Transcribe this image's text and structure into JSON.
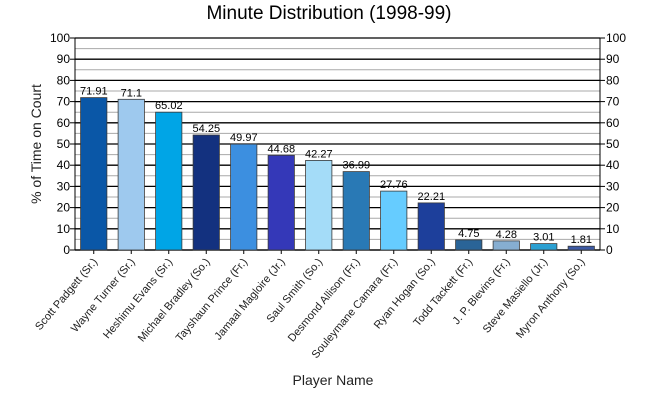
{
  "chart_data": {
    "type": "bar",
    "title": "Minute Distribution (1998-99)",
    "xlabel": "Player Name",
    "ylabel": "% of Time on Court",
    "ylim": [
      0,
      100
    ],
    "y_ticks": [
      0,
      10,
      20,
      30,
      40,
      50,
      60,
      70,
      80,
      90,
      100
    ],
    "grid": true,
    "legend": "none",
    "categories": [
      "Scott Padgett (Sr.)",
      "Wayne Turner (Sr.)",
      "Heshimu Evans (Sr.)",
      "Michael Bradley (So.)",
      "Tayshaun Prince (Fr.)",
      "Jamaal Magloire (Jr.)",
      "Saul Smith (So.)",
      "Desmond Allison (Fr.)",
      "Souleymane Camara (Fr.)",
      "Ryan Hogan (So.)",
      "Todd Tackett (Fr.)",
      "J. P. Blevins (Fr.)",
      "Steve Masiello (Jr.)",
      "Myron Anthony (So.)"
    ],
    "values": [
      71.91,
      71.1,
      65.02,
      54.25,
      49.97,
      44.68,
      42.27,
      36.99,
      27.76,
      22.21,
      4.75,
      4.28,
      3.01,
      1.81
    ],
    "value_labels": [
      "71.91",
      "71.1",
      "65.02",
      "54.25",
      "49.97",
      "44.68",
      "42.27",
      "36.99",
      "27.76",
      "22.21",
      "4.75",
      "4.28",
      "3.01",
      "1.81"
    ],
    "colors": [
      "#0a57a7",
      "#9ec9ee",
      "#00a5e6",
      "#13317f",
      "#3c8fe0",
      "#3438b8",
      "#a4dcf8",
      "#2979b5",
      "#66ccff",
      "#1d3f9b",
      "#2a6497",
      "#86aed1",
      "#2ba0d2",
      "#3d5aa5"
    ]
  }
}
